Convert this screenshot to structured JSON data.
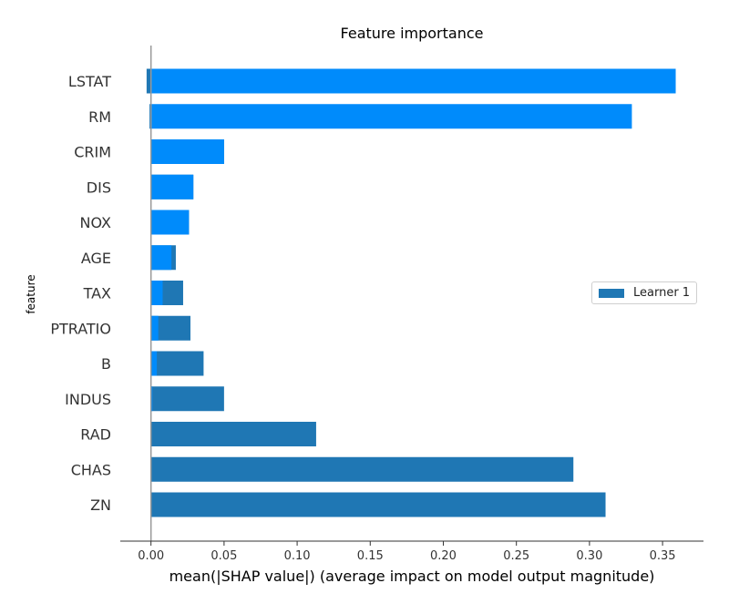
{
  "chart_data": {
    "type": "bar",
    "orientation": "horizontal",
    "title": "Feature importance",
    "xlabel": "mean(|SHAP value|) (average impact on model output magnitude)",
    "ylabel": "feature",
    "xlim": [
      -0.021,
      0.378
    ],
    "x_ticks": [
      0.0,
      0.05,
      0.1,
      0.15,
      0.2,
      0.25,
      0.3,
      0.35
    ],
    "x_tick_labels": [
      "0.00",
      "0.05",
      "0.10",
      "0.15",
      "0.20",
      "0.25",
      "0.30",
      "0.35"
    ],
    "categories": [
      "LSTAT",
      "RM",
      "CRIM",
      "DIS",
      "NOX",
      "AGE",
      "TAX",
      "PTRATIO",
      "B",
      "INDUS",
      "RAD",
      "CHAS",
      "ZN"
    ],
    "grid": false,
    "legend_position": "center-right",
    "series": [
      {
        "name": "Learner 1",
        "color": "#1f77b4",
        "values": [
          -0.003,
          -0.001,
          0.05,
          0.029,
          0.026,
          0.017,
          0.022,
          0.027,
          0.036,
          0.05,
          0.113,
          0.289,
          0.311
        ]
      },
      {
        "color": "#008bfb",
        "values": [
          0.359,
          0.329,
          0.05,
          0.029,
          0.026,
          0.014,
          0.008,
          0.005,
          0.004,
          0.001,
          0.0,
          0.0,
          0.0
        ]
      }
    ]
  }
}
